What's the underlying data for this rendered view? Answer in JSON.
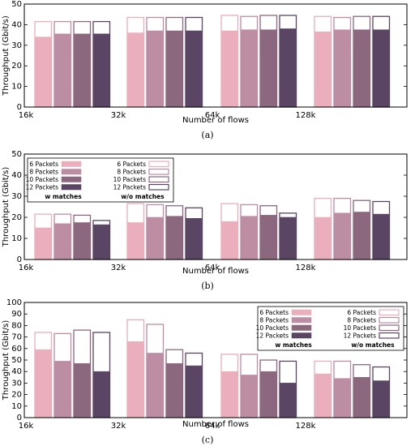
{
  "colors": {
    "6 Packets": "#ebaebd",
    "8 Packets": "#bd8da3",
    "10 Packets": "#8c687e",
    "12 Packets": "#5a4565"
  },
  "chart_data": [
    {
      "type": "bar",
      "caption": "(a)",
      "categories": [
        "16k",
        "32k",
        "64k",
        "128k"
      ],
      "series": [
        {
          "name": "6 Packets",
          "with_matches": [
            34,
            36,
            37,
            36.5
          ],
          "without_matches": [
            41.5,
            43.5,
            44.5,
            44
          ]
        },
        {
          "name": "8 Packets",
          "with_matches": [
            35.5,
            37,
            37.5,
            37.5
          ],
          "without_matches": [
            41.5,
            43.5,
            44,
            43.5
          ]
        },
        {
          "name": "10 Packets",
          "with_matches": [
            35.5,
            37,
            37.5,
            37.5
          ],
          "without_matches": [
            41.5,
            43.5,
            44.5,
            44
          ]
        },
        {
          "name": "12 Packets",
          "with_matches": [
            35.5,
            37,
            38,
            37.5
          ],
          "without_matches": [
            41.5,
            43.5,
            44.5,
            44
          ]
        }
      ],
      "xlabel": "Number of flows",
      "ylabel": "Throughput (Gbit/s)",
      "ylim": [
        0,
        50
      ],
      "yticks": [
        0,
        10,
        20,
        30,
        40,
        50
      ],
      "legend": null
    },
    {
      "type": "bar",
      "caption": "(b)",
      "categories": [
        "16k",
        "32k",
        "64k",
        "128k"
      ],
      "series": [
        {
          "name": "6 Packets",
          "with_matches": [
            15,
            17.5,
            18,
            20
          ],
          "without_matches": [
            21.5,
            26.5,
            26.5,
            29
          ]
        },
        {
          "name": "8 Packets",
          "with_matches": [
            17,
            20,
            20.5,
            22
          ],
          "without_matches": [
            21.5,
            26,
            26,
            29
          ]
        },
        {
          "name": "10 Packets",
          "with_matches": [
            17.5,
            20.5,
            21,
            22.5
          ],
          "without_matches": [
            21,
            25.5,
            25.5,
            28
          ]
        },
        {
          "name": "12 Packets",
          "with_matches": [
            16.5,
            19.5,
            20,
            21.5
          ],
          "without_matches": [
            18.5,
            24.5,
            22,
            27.5
          ]
        }
      ],
      "xlabel": "Number of flows",
      "ylabel": "Throughput (Gbit/s)",
      "ylim": [
        0,
        50
      ],
      "yticks": [
        0,
        10,
        20,
        30,
        40,
        50
      ],
      "legend": {
        "placement": "top-left",
        "with_title": "w matches",
        "without_title": "w/o matches",
        "labels": [
          "6 Packets",
          "8 Packets",
          "10 Packets",
          "12 Packets"
        ]
      }
    },
    {
      "type": "bar",
      "caption": "(c)",
      "categories": [
        "16k",
        "32k",
        "64k",
        "128k"
      ],
      "series": [
        {
          "name": "6 Packets",
          "with_matches": [
            59,
            66,
            40,
            38
          ],
          "without_matches": [
            74,
            85,
            55,
            49
          ]
        },
        {
          "name": "8 Packets",
          "with_matches": [
            49,
            56,
            37,
            34
          ],
          "without_matches": [
            73,
            81,
            55,
            49
          ]
        },
        {
          "name": "10 Packets",
          "with_matches": [
            47,
            47,
            40,
            35
          ],
          "without_matches": [
            76,
            59,
            50,
            46
          ]
        },
        {
          "name": "12 Packets",
          "with_matches": [
            40,
            45,
            30,
            32
          ],
          "without_matches": [
            74,
            56,
            49,
            44
          ]
        }
      ],
      "xlabel": "Number of flows",
      "ylabel": "Throughput (Gbit/s)",
      "ylim": [
        0,
        100
      ],
      "yticks": [
        0,
        10,
        20,
        30,
        40,
        50,
        60,
        70,
        80,
        90,
        100
      ],
      "legend": {
        "placement": "top-right",
        "with_title": "w matches",
        "without_title": "w/o matches",
        "labels": [
          "6 Packets",
          "8 Packets",
          "10 Packets",
          "12 Packets"
        ]
      }
    }
  ]
}
